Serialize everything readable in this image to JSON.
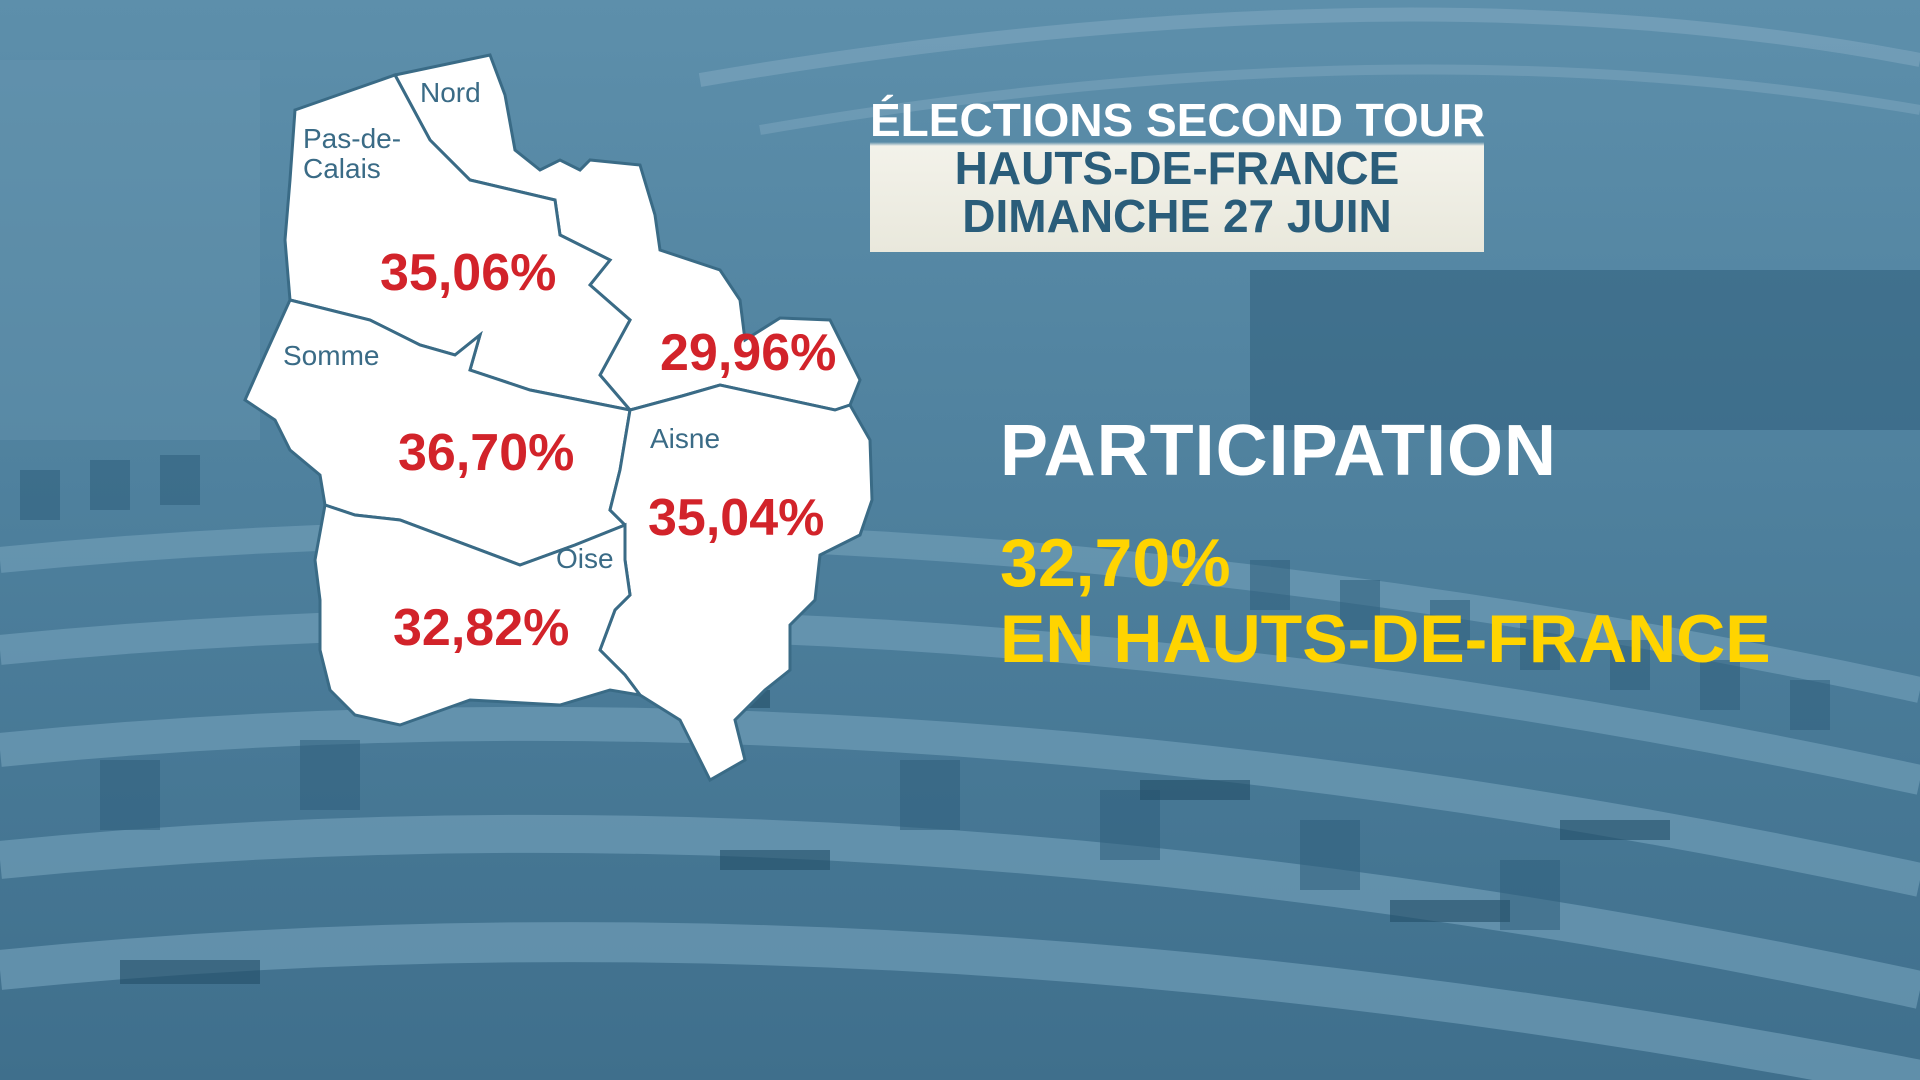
{
  "header": {
    "line1": "ÉLECTIONS SECOND TOUR",
    "line2": "HAUTS-DE-FRANCE",
    "line3": "DIMANCHE 27 JUIN"
  },
  "participation": {
    "title": "PARTICIPATION",
    "value": "32,70%",
    "region": "EN HAUTS-DE-FRANCE"
  },
  "departments": [
    {
      "name": "Nord",
      "turnout": "29,96%"
    },
    {
      "name": "Pas-de-Calais",
      "name_lines": [
        "Pas-de-",
        "Calais"
      ],
      "turnout": "35,06%"
    },
    {
      "name": "Somme",
      "turnout": "36,70%"
    },
    {
      "name": "Aisne",
      "turnout": "35,04%"
    },
    {
      "name": "Oise",
      "turnout": "32,82%"
    }
  ],
  "colors": {
    "background": "#4f7f9b",
    "map_fill": "#ffffff",
    "border": "#3a6b86",
    "percent": "#d2232a",
    "accent": "#ffd400",
    "title_band": "#f3f2ea"
  }
}
